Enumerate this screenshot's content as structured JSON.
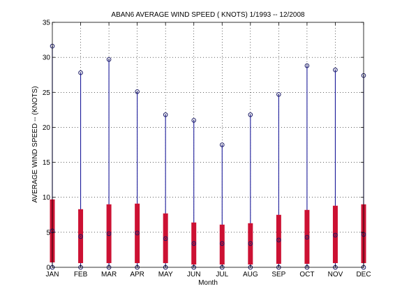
{
  "chart_data": {
    "type": "range-bar",
    "title": "ABAN6  AVERAGE WIND SPEED ( KNOTS) 1/1993 -- 12/2008",
    "xlabel": "Month",
    "ylabel": "AVERAGE WIND SPEED -- (KNOTS)",
    "categories": [
      "JAN",
      "FEB",
      "MAR",
      "APR",
      "MAY",
      "JUN",
      "JUL",
      "AUG",
      "SEP",
      "OCT",
      "NOV",
      "DEC"
    ],
    "ylim": [
      0,
      35
    ],
    "yticks": [
      0,
      5,
      10,
      15,
      20,
      25,
      30,
      35
    ],
    "grid": true,
    "series": [
      {
        "name": "max",
        "values": [
          31.6,
          27.8,
          29.7,
          25.1,
          21.8,
          21.0,
          17.5,
          21.8,
          24.7,
          28.8,
          28.2,
          27.4
        ]
      },
      {
        "name": "mean",
        "values": [
          5.2,
          4.4,
          4.8,
          4.9,
          4.1,
          3.4,
          3.4,
          3.4,
          3.9,
          4.3,
          4.6,
          4.7
        ]
      },
      {
        "name": "min",
        "values": [
          0,
          0,
          0,
          0,
          0,
          0,
          0,
          0,
          0,
          0,
          0,
          0
        ]
      },
      {
        "name": "upper",
        "values": [
          9.7,
          8.3,
          9.0,
          9.1,
          7.7,
          6.4,
          6.1,
          6.3,
          7.5,
          8.2,
          8.8,
          9.0
        ]
      },
      {
        "name": "lower",
        "values": [
          0.7,
          0.6,
          0.6,
          0.6,
          0.6,
          0.4,
          0.4,
          0.4,
          0.5,
          0.5,
          0.6,
          0.6
        ]
      }
    ],
    "colors": {
      "line": "#1a1a99",
      "bar": "#cc1133",
      "marker": "#1a1a66"
    }
  }
}
